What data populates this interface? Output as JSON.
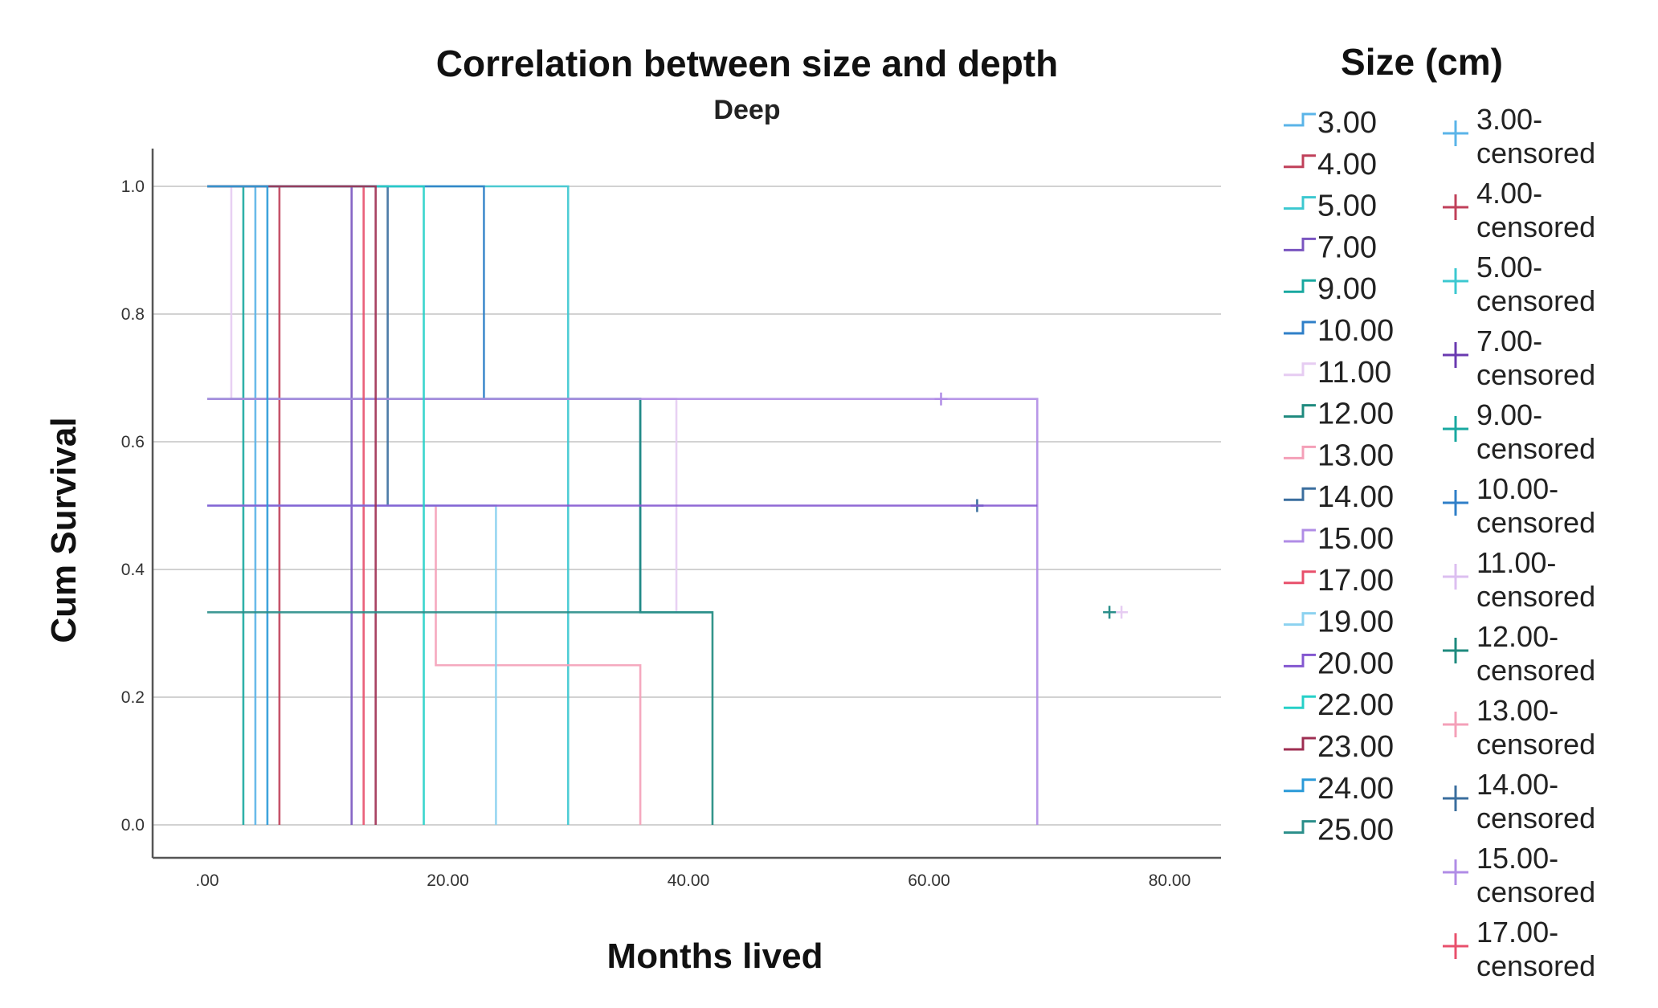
{
  "chart_data": {
    "type": "line",
    "subtype": "kaplan-meier step survival curves",
    "title": "Correlation between size and depth",
    "subtitle": "Deep",
    "xlabel": "Months lived",
    "ylabel": "Cum Survival",
    "xlim": [
      -2,
      87
    ],
    "ylim": [
      0.0,
      1.05
    ],
    "x_ticks": [
      {
        "value": 0,
        "label": ".00"
      },
      {
        "value": 20,
        "label": "20.00"
      },
      {
        "value": 40,
        "label": "40.00"
      },
      {
        "value": 60,
        "label": "60.00"
      },
      {
        "value": 80,
        "label": "80.00"
      }
    ],
    "y_ticks": [
      {
        "value": 0.0,
        "label": "0.0"
      },
      {
        "value": 0.2,
        "label": "0.2"
      },
      {
        "value": 0.4,
        "label": "0.4"
      },
      {
        "value": 0.6,
        "label": "0.6"
      },
      {
        "value": 0.8,
        "label": "0.8"
      },
      {
        "value": 1.0,
        "label": "1.0"
      }
    ],
    "grid": "horizontal",
    "legend": {
      "title": "Size (cm)",
      "position": "right"
    },
    "series": [
      {
        "name": "3.00",
        "color": "#5ab4e8",
        "x": [
          0,
          4,
          4
        ],
        "y": [
          1,
          1,
          0
        ],
        "censored": []
      },
      {
        "name": "4.00",
        "color": "#c0405a",
        "x": [
          0,
          6,
          6
        ],
        "y": [
          1,
          1,
          0
        ],
        "censored": []
      },
      {
        "name": "5.00",
        "color": "#3cc8d0",
        "x": [
          0,
          30,
          30
        ],
        "y": [
          1,
          1,
          0
        ],
        "censored": []
      },
      {
        "name": "7.00",
        "color": "#7a55c0",
        "x": [
          0,
          12,
          12
        ],
        "y": [
          1,
          1,
          0
        ],
        "censored": []
      },
      {
        "name": "9.00",
        "color": "#18a8a0",
        "x": [
          0,
          3,
          3
        ],
        "y": [
          1,
          1,
          0
        ],
        "censored": []
      },
      {
        "name": "10.00",
        "color": "#2f7fc8",
        "x": [
          0,
          23,
          23,
          36,
          36
        ],
        "y": [
          1,
          1,
          0.667,
          0.667,
          0.333
        ],
        "censored": []
      },
      {
        "name": "11.00",
        "color": "#e6ccf2",
        "x": [
          0,
          2,
          2,
          39,
          39
        ],
        "y": [
          1,
          1,
          0.667,
          0.667,
          0.333
        ],
        "censored": [
          {
            "x": 76,
            "y": 0.333
          }
        ]
      },
      {
        "name": "12.00",
        "color": "#1e8a7e",
        "x": [
          0,
          36,
          36,
          42,
          42
        ],
        "y": [
          0.667,
          0.667,
          0.333,
          0.333,
          0
        ],
        "censored": []
      },
      {
        "name": "13.00",
        "color": "#f4a0b8",
        "x": [
          19,
          19,
          36,
          36
        ],
        "y": [
          0.5,
          0.25,
          0.25,
          0
        ],
        "censored": []
      },
      {
        "name": "14.00",
        "color": "#3a6e9e",
        "x": [
          0,
          15,
          15
        ],
        "y": [
          1,
          1,
          0.5
        ],
        "censored": [
          {
            "x": 64,
            "y": 0.5
          }
        ]
      },
      {
        "name": "15.00",
        "color": "#b08ce6",
        "x": [
          0,
          69,
          69
        ],
        "y": [
          0.667,
          0.667,
          0
        ],
        "censored": [
          {
            "x": 61,
            "y": 0.667
          }
        ]
      },
      {
        "name": "17.00",
        "color": "#e8506c",
        "x": [
          0,
          13,
          13
        ],
        "y": [
          1,
          1,
          0
        ],
        "censored": []
      },
      {
        "name": "19.00",
        "color": "#8cd2f0",
        "x": [
          0,
          24,
          24
        ],
        "y": [
          0.5,
          0.5,
          0
        ],
        "censored": []
      },
      {
        "name": "20.00",
        "color": "#8458d0",
        "x": [
          0,
          69
        ],
        "y": [
          0.5,
          0.5
        ],
        "censored": []
      },
      {
        "name": "22.00",
        "color": "#26d0c8",
        "x": [
          0,
          18,
          18
        ],
        "y": [
          1,
          1,
          0
        ],
        "censored": []
      },
      {
        "name": "23.00",
        "color": "#9e2e52",
        "x": [
          0,
          14,
          14
        ],
        "y": [
          1,
          1,
          0
        ],
        "censored": []
      },
      {
        "name": "24.00",
        "color": "#2a9ad8",
        "x": [
          0,
          5,
          5
        ],
        "y": [
          1,
          1,
          0
        ],
        "censored": []
      },
      {
        "name": "25.00",
        "color": "#2a8e8a",
        "x": [
          0,
          24,
          24,
          42
        ],
        "y": [
          0.333,
          0.333,
          0.333,
          0.333
        ],
        "censored": [
          {
            "x": 75,
            "y": 0.333
          }
        ]
      }
    ],
    "censored_legend": [
      {
        "name": "3.00-censored",
        "color": "#5ab4e8"
      },
      {
        "name": "4.00-censored",
        "color": "#c0405a"
      },
      {
        "name": "5.00-censored",
        "color": "#3cc8d0"
      },
      {
        "name": "7.00-censored",
        "color": "#6a3ab0"
      },
      {
        "name": "9.00-censored",
        "color": "#18a8a0"
      },
      {
        "name": "10.00-censored",
        "color": "#2f7fc8"
      },
      {
        "name": "11.00-censored",
        "color": "#dcbff0"
      },
      {
        "name": "12.00-censored",
        "color": "#1e8a7e"
      },
      {
        "name": "13.00-censored",
        "color": "#f4a0b8"
      },
      {
        "name": "14.00-censored",
        "color": "#3a6e9e"
      },
      {
        "name": "15.00-censored",
        "color": "#b08ce6"
      },
      {
        "name": "17.00-censored",
        "color": "#e8506c"
      }
    ]
  }
}
